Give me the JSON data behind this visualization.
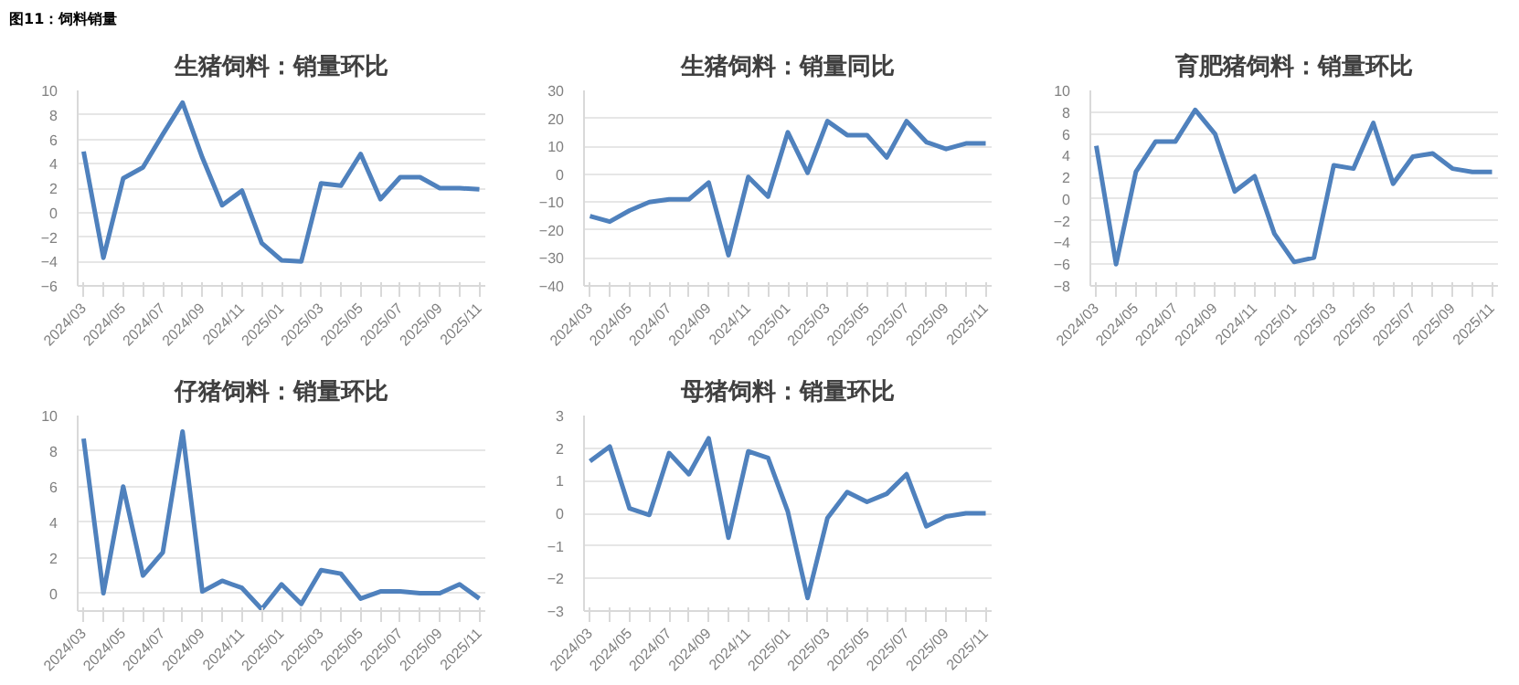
{
  "chart_data": [
    {
      "type": "line",
      "title": "生猪饲料：销量环比",
      "annotations": [
        "图11：饲料销量"
      ],
      "categories": [
        "2024/03",
        null,
        "2024/05",
        null,
        "2024/07",
        null,
        "2024/09",
        null,
        "2024/11",
        null,
        "2025/01",
        null,
        "2025/03",
        null,
        "2025/05",
        null,
        "2025/07",
        null,
        "2025/09",
        null,
        "2025/11"
      ],
      "series": [
        {
          "color": "#4f81bd",
          "values": [
            5,
            -3.7,
            2.8,
            3.7,
            6.4,
            9.0,
            4.5,
            0.6,
            1.8,
            -2.5,
            -3.9,
            -4.0,
            2.4,
            2.2,
            4.8,
            1.1,
            2.9,
            2.9,
            2.0,
            2.0,
            1.9
          ]
        }
      ],
      "ylim": [
        -6,
        10
      ],
      "yticks": [
        -6,
        -4,
        -2,
        0,
        2,
        4,
        6,
        8,
        10
      ],
      "grid": "y",
      "marker": "none",
      "line_style": "solid"
    },
    {
      "type": "line",
      "title": "生猪饲料：销量同比",
      "categories": [
        "2024/03",
        null,
        "2024/05",
        null,
        "2024/07",
        null,
        "2024/09",
        null,
        "2024/11",
        null,
        "2025/01",
        null,
        "2025/03",
        null,
        "2025/05",
        null,
        "2025/07",
        null,
        "2025/09",
        null,
        "2025/11"
      ],
      "series": [
        {
          "color": "#4f81bd",
          "values": [
            -15,
            -17,
            -13,
            -10,
            -9,
            -9,
            -3,
            -29,
            -1,
            -8,
            15,
            0.5,
            19,
            14,
            14,
            6,
            19,
            11.5,
            9,
            11,
            11
          ]
        }
      ],
      "ylim": [
        -40,
        30
      ],
      "yticks": [
        -40,
        -30,
        -20,
        -10,
        0,
        10,
        20,
        30
      ],
      "grid": "y",
      "marker": "none",
      "line_style": "solid"
    },
    {
      "type": "line",
      "title": "育肥猪饲料：销量环比",
      "categories": [
        "2024/03",
        null,
        "2024/05",
        null,
        "2024/07",
        null,
        "2024/09",
        null,
        "2024/11",
        null,
        "2025/01",
        null,
        "2025/03",
        null,
        "2025/05",
        null,
        "2025/07",
        null,
        "2025/09",
        null,
        "2025/11"
      ],
      "series": [
        {
          "color": "#4f81bd",
          "values": [
            4.9,
            -6.0,
            2.5,
            5.3,
            5.3,
            8.2,
            6.0,
            0.7,
            2.1,
            -3.2,
            -5.8,
            -5.4,
            3.1,
            2.8,
            7.0,
            1.4,
            3.9,
            4.2,
            2.8,
            2.5,
            2.5
          ]
        }
      ],
      "ylim": [
        -8,
        10
      ],
      "yticks": [
        -8,
        -6,
        -4,
        -2,
        0,
        2,
        4,
        6,
        8,
        10
      ],
      "grid": "y",
      "marker": "none",
      "line_style": "solid"
    },
    {
      "type": "line",
      "title": "仔猪饲料：销量环比",
      "categories": [
        "2024/03",
        null,
        "2024/05",
        null,
        "2024/07",
        null,
        "2024/09",
        null,
        "2024/11",
        null,
        "2025/01",
        null,
        "2025/03",
        null,
        "2025/05",
        null,
        "2025/07",
        null,
        "2025/09",
        null,
        "2025/11"
      ],
      "series": [
        {
          "color": "#4f81bd",
          "values": [
            8.7,
            0.0,
            6.0,
            1.0,
            2.3,
            9.1,
            0.1,
            0.7,
            0.3,
            -0.9,
            0.5,
            -0.6,
            1.3,
            1.1,
            -0.3,
            0.1,
            0.1,
            0.0,
            0.0,
            0.5,
            -0.3
          ]
        }
      ],
      "ylim": [
        -1,
        10
      ],
      "yticks": [
        0,
        2,
        4,
        6,
        8,
        10
      ],
      "grid": "y",
      "marker": "none",
      "line_style": "solid"
    },
    {
      "type": "line",
      "title": "母猪饲料：销量环比",
      "categories": [
        "2024/03",
        null,
        "2024/05",
        null,
        "2024/07",
        null,
        "2024/09",
        null,
        "2024/11",
        null,
        "2025/01",
        null,
        "2025/03",
        null,
        "2025/05",
        null,
        "2025/07",
        null,
        "2025/09",
        null,
        "2025/11"
      ],
      "series": [
        {
          "color": "#4f81bd",
          "values": [
            1.6,
            2.05,
            0.15,
            -0.05,
            1.85,
            1.2,
            2.3,
            -0.75,
            1.9,
            1.7,
            0.05,
            -2.6,
            -0.15,
            0.65,
            0.35,
            0.6,
            1.2,
            -0.4,
            -0.1,
            0.0,
            0.0
          ]
        }
      ],
      "ylim": [
        -3,
        3
      ],
      "yticks": [
        -3,
        -2,
        -1,
        0,
        1,
        2,
        3
      ],
      "grid": "y",
      "marker": "none",
      "line_style": "solid"
    }
  ]
}
